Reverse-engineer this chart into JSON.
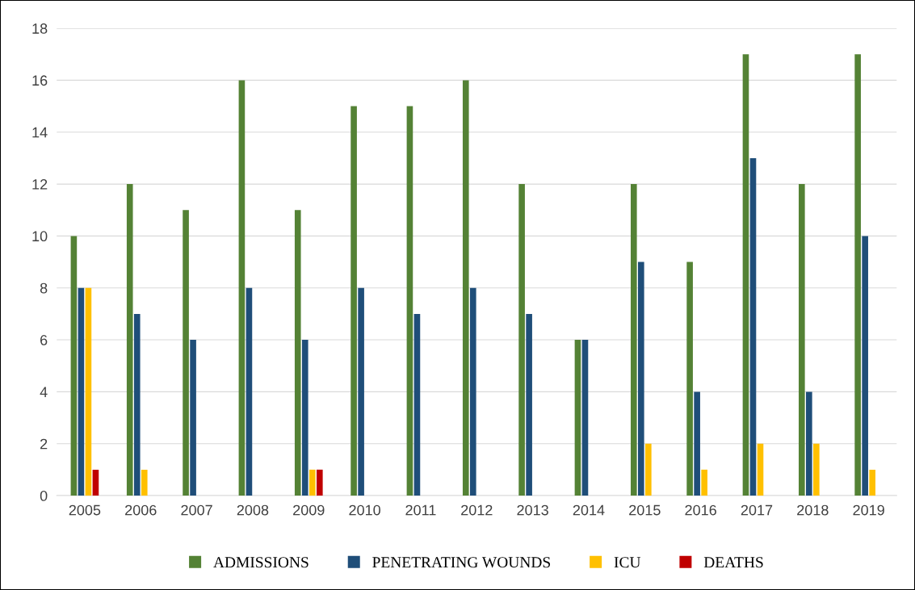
{
  "chart_data": {
    "type": "bar",
    "categories": [
      "2005",
      "2006",
      "2007",
      "2008",
      "2009",
      "2010",
      "2011",
      "2012",
      "2013",
      "2014",
      "2015",
      "2016",
      "2017",
      "2018",
      "2019"
    ],
    "series": [
      {
        "name": "ADMISSIONS",
        "color": "#548235",
        "values": [
          10,
          12,
          11,
          16,
          11,
          15,
          15,
          16,
          12,
          6,
          12,
          9,
          17,
          12,
          17
        ]
      },
      {
        "name": "PENETRATING WOUNDS",
        "color": "#1f4e79",
        "values": [
          8,
          7,
          6,
          8,
          6,
          8,
          7,
          8,
          7,
          6,
          9,
          4,
          13,
          4,
          10
        ]
      },
      {
        "name": "ICU",
        "color": "#ffc000",
        "values": [
          8,
          1,
          0,
          0,
          1,
          0,
          0,
          0,
          0,
          0,
          2,
          1,
          2,
          2,
          1
        ]
      },
      {
        "name": "DEATHS",
        "color": "#c00000",
        "values": [
          1,
          0,
          0,
          0,
          1,
          0,
          0,
          0,
          0,
          0,
          0,
          0,
          0,
          0,
          0
        ]
      }
    ],
    "ylim": [
      0,
      18
    ],
    "yticks": [
      0,
      2,
      4,
      6,
      8,
      10,
      12,
      14,
      16,
      18
    ],
    "grid": "y",
    "legend": "bottom"
  }
}
